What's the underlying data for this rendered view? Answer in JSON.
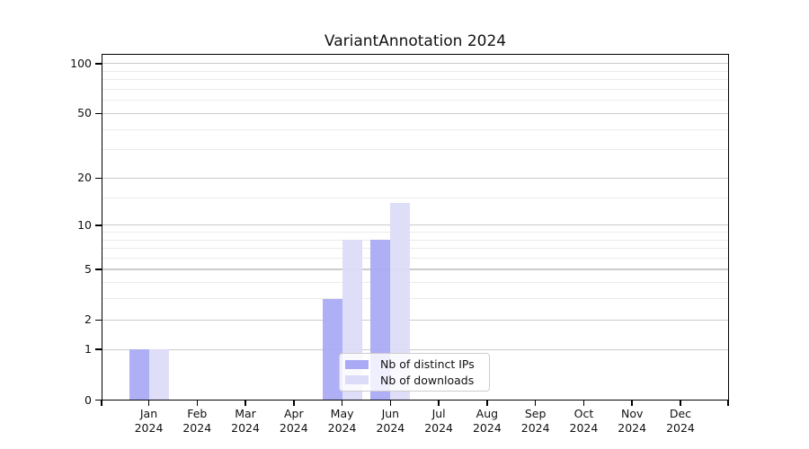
{
  "title": "VariantAnnotation 2024",
  "chart_data": {
    "type": "bar",
    "title": "VariantAnnotation 2024",
    "categories": [
      "Jan",
      "Feb",
      "Mar",
      "Apr",
      "May",
      "Jun",
      "Jul",
      "Aug",
      "Sep",
      "Oct",
      "Nov",
      "Dec"
    ],
    "year_label": "2024",
    "series": [
      {
        "name": "Nb of distinct IPs",
        "color": "#a9a9f5",
        "values": [
          1,
          0,
          0,
          0,
          3,
          8,
          0,
          0,
          0,
          0,
          0,
          0
        ]
      },
      {
        "name": "Nb of downloads",
        "color": "#dcdcf9",
        "values": [
          1,
          0,
          0,
          0,
          8,
          14,
          0,
          0,
          0,
          0,
          0,
          0
        ]
      }
    ],
    "y_axis": {
      "scale": "log1p",
      "min": 0,
      "max": 113,
      "major_ticks": [
        0,
        1,
        2,
        5,
        10,
        20,
        50,
        100
      ],
      "minor_ticks": [
        3,
        4,
        6,
        7,
        8,
        9,
        15,
        30,
        40,
        60,
        70,
        80,
        90
      ]
    },
    "x_axis": {
      "tick_style": "centered-per-month"
    },
    "legend_position": "inside-bottom-center",
    "grid": {
      "major_color": "#cbcbcb",
      "minor_color": "#ebebeb"
    },
    "axis_color": "#000000",
    "background": "#ffffff"
  }
}
